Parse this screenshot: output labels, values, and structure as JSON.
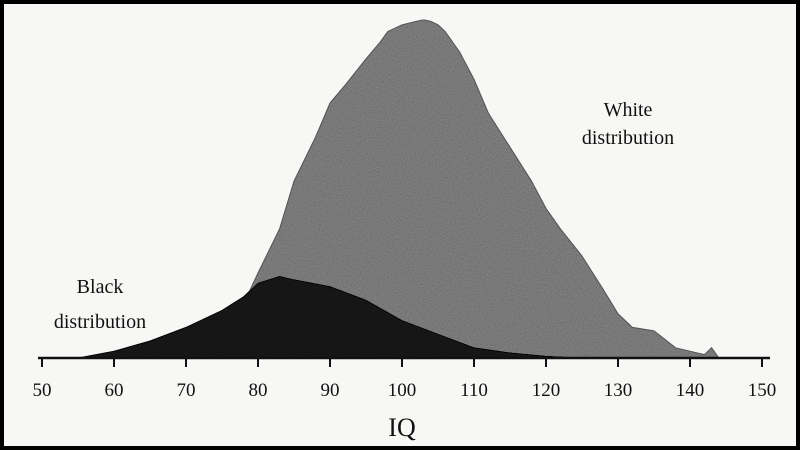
{
  "chart_data": {
    "type": "area",
    "xlabel": "IQ",
    "xlim": [
      50,
      150
    ],
    "x_ticks": [
      50,
      60,
      70,
      80,
      90,
      100,
      110,
      120,
      130,
      140,
      150
    ],
    "series": [
      {
        "name": "White distribution",
        "color": "#8a8a8a",
        "x": [
          55,
          60,
          65,
          70,
          75,
          78,
          80,
          83,
          85,
          88,
          90,
          92,
          95,
          97,
          98,
          100,
          102,
          103,
          104,
          105,
          106,
          108,
          110,
          112,
          115,
          118,
          120,
          122,
          125,
          128,
          130,
          132,
          135,
          138,
          140,
          142,
          143,
          144
        ],
        "y": [
          0,
          0.5,
          2,
          5,
          10,
          16,
          25,
          38,
          52,
          65,
          75,
          80,
          88,
          93,
          96,
          98,
          99,
          99.5,
          99,
          98,
          96,
          90,
          82,
          72,
          62,
          52,
          44,
          38,
          30,
          20,
          13,
          9,
          8,
          3,
          2,
          1,
          3,
          0
        ]
      },
      {
        "name": "Black distribution",
        "color": "#1a1a1a",
        "x": [
          55,
          60,
          65,
          70,
          75,
          78,
          80,
          83,
          85,
          90,
          95,
          100,
          105,
          110,
          115,
          120,
          125
        ],
        "y": [
          0,
          2,
          5,
          9,
          14,
          18,
          22,
          24,
          23,
          21,
          17,
          11,
          7,
          3,
          1.5,
          0.5,
          0
        ]
      }
    ]
  },
  "labels": {
    "white": [
      "White",
      "distribution"
    ],
    "black": [
      "Black",
      "distribution"
    ]
  }
}
